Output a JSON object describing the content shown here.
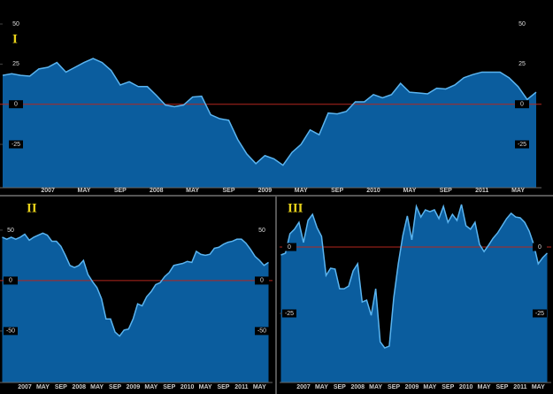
{
  "chart_data": [
    {
      "type": "area",
      "label": "I",
      "categories": [
        null,
        null,
        null,
        null,
        null,
        "2007",
        null,
        null,
        null,
        "MAY",
        null,
        null,
        null,
        "SEP",
        null,
        null,
        null,
        "2008",
        null,
        null,
        null,
        "MAY",
        null,
        null,
        null,
        "SEP",
        null,
        null,
        null,
        "2009",
        null,
        null,
        null,
        "MAY",
        null,
        null,
        null,
        "SEP",
        null,
        null,
        null,
        "2010",
        null,
        null,
        null,
        "MAY",
        null,
        null,
        null,
        "SEP",
        null,
        null,
        null,
        "2011",
        null,
        null,
        null,
        "MAY",
        null,
        null
      ],
      "values": [
        18,
        19,
        18,
        17.5,
        22,
        23,
        26,
        20,
        23,
        26,
        28.5,
        26,
        21,
        12,
        14,
        11,
        11,
        5.5,
        -0.5,
        -1.5,
        -0.5,
        4.5,
        5,
        -6.5,
        -9,
        -10,
        -22,
        -31,
        -37,
        -32,
        -34,
        -38,
        -30,
        -25,
        -16,
        -19,
        -5.5,
        -6,
        -4.5,
        1.5,
        1.5,
        6,
        4,
        6,
        13,
        7.5,
        7,
        6.5,
        10,
        9.5,
        12,
        16.5,
        18.5,
        20,
        20,
        20,
        16.5,
        11,
        3,
        7.5
      ],
      "color": "#0b5d9e",
      "line_color": "#5ab4f0",
      "zero_line_color": "#b3261e",
      "ylim": [
        -52,
        55
      ],
      "yticks": [
        -25,
        0,
        25,
        50
      ],
      "grid": false
    },
    {
      "type": "area",
      "label": "II",
      "categories": [
        null,
        null,
        null,
        null,
        null,
        "2007",
        null,
        null,
        null,
        "MAY",
        null,
        null,
        null,
        "SEP",
        null,
        null,
        null,
        "2008",
        null,
        null,
        null,
        "MAY",
        null,
        null,
        null,
        "SEP",
        null,
        null,
        null,
        "2009",
        null,
        null,
        null,
        "MAY",
        null,
        null,
        null,
        "SEP",
        null,
        null,
        null,
        "2010",
        null,
        null,
        null,
        "MAY",
        null,
        null,
        null,
        "SEP",
        null,
        null,
        null,
        "2011",
        null,
        null,
        null,
        "MAY",
        null,
        null
      ],
      "values": [
        43,
        41,
        43,
        41,
        43,
        46,
        40,
        43,
        45,
        47,
        45,
        39,
        39,
        34,
        25,
        15,
        13,
        15,
        20,
        6,
        -1,
        -7,
        -18,
        -38,
        -38,
        -51,
        -55,
        -49,
        -48,
        -38,
        -23,
        -25,
        -16,
        -11,
        -4,
        -2,
        4,
        8,
        15,
        16,
        17,
        19,
        18,
        29,
        26,
        25,
        26,
        32,
        33,
        36,
        38,
        39,
        41,
        41,
        37,
        31,
        24,
        20,
        15,
        18
      ],
      "color": "#0b5d9e",
      "line_color": "#5ab4f0",
      "zero_line_color": "#b3261e",
      "ylim": [
        -101,
        78
      ],
      "yticks": [
        -50,
        0,
        50
      ],
      "grid": false
    },
    {
      "type": "area",
      "label": "III",
      "categories": [
        null,
        null,
        null,
        null,
        null,
        "2007",
        null,
        null,
        null,
        "MAY",
        null,
        null,
        null,
        "SEP",
        null,
        null,
        null,
        "2008",
        null,
        null,
        null,
        "MAY",
        null,
        null,
        null,
        "SEP",
        null,
        null,
        null,
        "2009",
        null,
        null,
        null,
        "MAY",
        null,
        null,
        null,
        "SEP",
        null,
        null,
        null,
        "2010",
        null,
        null,
        null,
        "MAY",
        null,
        null,
        null,
        "SEP",
        null,
        null,
        null,
        "2011",
        null,
        null,
        null,
        "MAY",
        null,
        null
      ],
      "values": [
        -3,
        -2.3,
        5,
        6.7,
        9.3,
        1.7,
        10,
        12.3,
        7.3,
        4,
        -10.7,
        -8,
        -8.3,
        -15.7,
        -15.7,
        -14.7,
        -9,
        -6.3,
        -20.7,
        -20,
        -25.7,
        -15.7,
        -35.7,
        -38,
        -37.3,
        -19,
        -6.3,
        4.3,
        11.7,
        2.7,
        15.3,
        11.3,
        14,
        13.3,
        14,
        10.7,
        15.3,
        9.3,
        12.3,
        10,
        16,
        8,
        6.7,
        9.3,
        1,
        -1.7,
        0.7,
        3.3,
        5.3,
        8,
        10.7,
        12.7,
        11.3,
        11,
        9.3,
        6,
        1,
        -6.3,
        -4,
        -2.3
      ],
      "color": "#0b5d9e",
      "line_color": "#5ab4f0",
      "zero_line_color": "#b3261e",
      "ylim": [
        -51,
        17
      ],
      "yticks": [
        -25,
        0
      ],
      "grid": false
    }
  ]
}
